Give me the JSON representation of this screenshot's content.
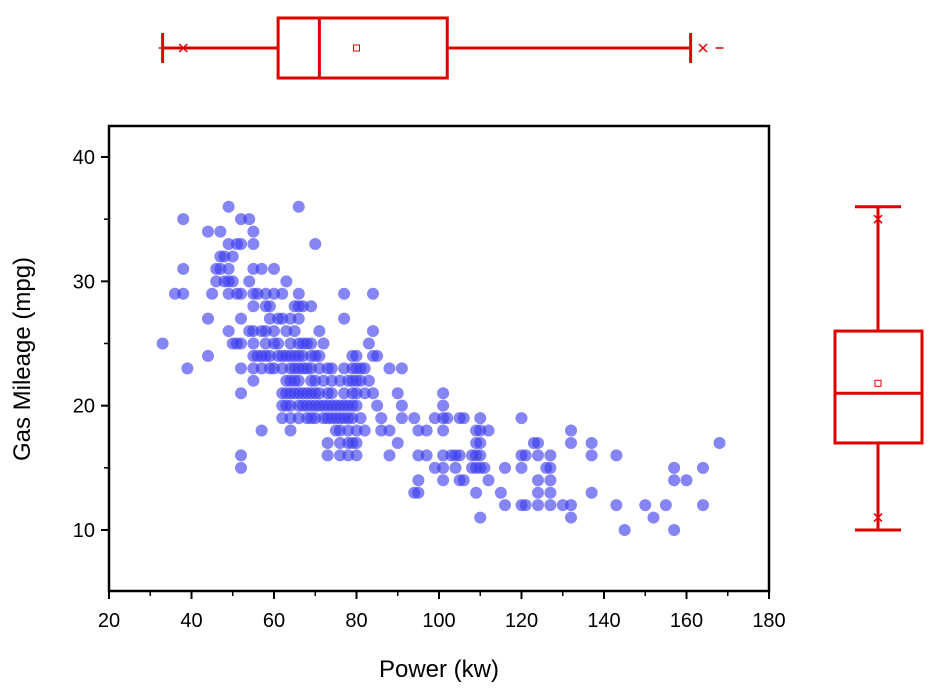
{
  "chart_data": {
    "type": "scatter",
    "xlabel": "Power (kw)",
    "ylabel": "Gas Mileage (mpg)",
    "xlim": [
      20,
      180
    ],
    "ylim": [
      5,
      43
    ],
    "x_ticks": [
      20,
      40,
      60,
      80,
      100,
      120,
      140,
      160,
      180
    ],
    "y_ticks": [
      10,
      20,
      30,
      40
    ],
    "grid": false,
    "legend": "none",
    "point_color": "#3a3aef",
    "box_color": "#e00000",
    "series": [
      {
        "points": [
          [
            33,
            25
          ],
          [
            36,
            29
          ],
          [
            38,
            35
          ],
          [
            38,
            31
          ],
          [
            38,
            29
          ],
          [
            39,
            23
          ],
          [
            44,
            34
          ],
          [
            44,
            27
          ],
          [
            44,
            24
          ],
          [
            45,
            29
          ],
          [
            46,
            31
          ],
          [
            46,
            30
          ],
          [
            47,
            34
          ],
          [
            47,
            32
          ],
          [
            47,
            31
          ],
          [
            48,
            32
          ],
          [
            48,
            30
          ],
          [
            49,
            36
          ],
          [
            49,
            33
          ],
          [
            49,
            31
          ],
          [
            49,
            30
          ],
          [
            49,
            29
          ],
          [
            49,
            26
          ],
          [
            50,
            32
          ],
          [
            50,
            30
          ],
          [
            50,
            25
          ],
          [
            51,
            33
          ],
          [
            51,
            29
          ],
          [
            51,
            25
          ],
          [
            52,
            35
          ],
          [
            52,
            33
          ],
          [
            52,
            29
          ],
          [
            52,
            27
          ],
          [
            52,
            25
          ],
          [
            52,
            23
          ],
          [
            52,
            21
          ],
          [
            52,
            16
          ],
          [
            52,
            15
          ],
          [
            54,
            35
          ],
          [
            54,
            30
          ],
          [
            54,
            26
          ],
          [
            55,
            34
          ],
          [
            55,
            33
          ],
          [
            55,
            31
          ],
          [
            55,
            29
          ],
          [
            55,
            28
          ],
          [
            55,
            26
          ],
          [
            55,
            25
          ],
          [
            55,
            24
          ],
          [
            55,
            23
          ],
          [
            55,
            22
          ],
          [
            56,
            29
          ],
          [
            56,
            24
          ],
          [
            57,
            31
          ],
          [
            57,
            26
          ],
          [
            57,
            24
          ],
          [
            57,
            23
          ],
          [
            57,
            18
          ],
          [
            58,
            29
          ],
          [
            58,
            28
          ],
          [
            58,
            26
          ],
          [
            58,
            25
          ],
          [
            58,
            24
          ],
          [
            59,
            28
          ],
          [
            59,
            27
          ],
          [
            59,
            24
          ],
          [
            59,
            23
          ],
          [
            60,
            31
          ],
          [
            60,
            29
          ],
          [
            60,
            26
          ],
          [
            60,
            25
          ],
          [
            60,
            23
          ],
          [
            61,
            27
          ],
          [
            61,
            25
          ],
          [
            61,
            24
          ],
          [
            62,
            29
          ],
          [
            62,
            27
          ],
          [
            62,
            24
          ],
          [
            62,
            23
          ],
          [
            62,
            21
          ],
          [
            62,
            20
          ],
          [
            62,
            19
          ],
          [
            63,
            30
          ],
          [
            63,
            26
          ],
          [
            63,
            24
          ],
          [
            63,
            22
          ],
          [
            63,
            21
          ],
          [
            63,
            20
          ],
          [
            64,
            27
          ],
          [
            64,
            25
          ],
          [
            64,
            24
          ],
          [
            64,
            23
          ],
          [
            64,
            22
          ],
          [
            64,
            21
          ],
          [
            64,
            20
          ],
          [
            64,
            19
          ],
          [
            64,
            18
          ],
          [
            65,
            28
          ],
          [
            65,
            26
          ],
          [
            65,
            24
          ],
          [
            65,
            23
          ],
          [
            65,
            22
          ],
          [
            65,
            21
          ],
          [
            66,
            36
          ],
          [
            66,
            29
          ],
          [
            66,
            28
          ],
          [
            66,
            27
          ],
          [
            66,
            25
          ],
          [
            66,
            24
          ],
          [
            66,
            23
          ],
          [
            66,
            22
          ],
          [
            66,
            21
          ],
          [
            66,
            20
          ],
          [
            66,
            19
          ],
          [
            67,
            28
          ],
          [
            67,
            25
          ],
          [
            67,
            24
          ],
          [
            67,
            23
          ],
          [
            67,
            21
          ],
          [
            67,
            20
          ],
          [
            68,
            25
          ],
          [
            68,
            23
          ],
          [
            68,
            21
          ],
          [
            68,
            20
          ],
          [
            68,
            19
          ],
          [
            69,
            28
          ],
          [
            69,
            25
          ],
          [
            69,
            24
          ],
          [
            69,
            23
          ],
          [
            69,
            22
          ],
          [
            69,
            21
          ],
          [
            69,
            20
          ],
          [
            69,
            19
          ],
          [
            70,
            33
          ],
          [
            70,
            24
          ],
          [
            70,
            22
          ],
          [
            70,
            21
          ],
          [
            70,
            20
          ],
          [
            70,
            19
          ],
          [
            71,
            26
          ],
          [
            71,
            24
          ],
          [
            71,
            23
          ],
          [
            71,
            21
          ],
          [
            71,
            20
          ],
          [
            72,
            25
          ],
          [
            72,
            22
          ],
          [
            72,
            20
          ],
          [
            72,
            19
          ],
          [
            73,
            23
          ],
          [
            73,
            21
          ],
          [
            73,
            20
          ],
          [
            73,
            19
          ],
          [
            73,
            17
          ],
          [
            73,
            16
          ],
          [
            74,
            23
          ],
          [
            74,
            22
          ],
          [
            74,
            21
          ],
          [
            74,
            20
          ],
          [
            74,
            19
          ],
          [
            75,
            20
          ],
          [
            75,
            19
          ],
          [
            75,
            18
          ],
          [
            76,
            22
          ],
          [
            76,
            20
          ],
          [
            76,
            19
          ],
          [
            76,
            18
          ],
          [
            76,
            17
          ],
          [
            76,
            16
          ],
          [
            77,
            29
          ],
          [
            77,
            27
          ],
          [
            77,
            23
          ],
          [
            77,
            21
          ],
          [
            77,
            20
          ],
          [
            77,
            19
          ],
          [
            78,
            22
          ],
          [
            78,
            20
          ],
          [
            78,
            19
          ],
          [
            78,
            18
          ],
          [
            78,
            17
          ],
          [
            78,
            16
          ],
          [
            79,
            24
          ],
          [
            79,
            23
          ],
          [
            79,
            22
          ],
          [
            79,
            21
          ],
          [
            79,
            20
          ],
          [
            79,
            19
          ],
          [
            79,
            17
          ],
          [
            80,
            24
          ],
          [
            80,
            23
          ],
          [
            80,
            22
          ],
          [
            80,
            21
          ],
          [
            80,
            20
          ],
          [
            80,
            18
          ],
          [
            80,
            17
          ],
          [
            80,
            16
          ],
          [
            81,
            23
          ],
          [
            81,
            22
          ],
          [
            81,
            19
          ],
          [
            82,
            18
          ],
          [
            82,
            23
          ],
          [
            82,
            21
          ],
          [
            83,
            25
          ],
          [
            83,
            22
          ],
          [
            84,
            29
          ],
          [
            84,
            26
          ],
          [
            84,
            24
          ],
          [
            84,
            21
          ],
          [
            85,
            24
          ],
          [
            85,
            20
          ],
          [
            86,
            19
          ],
          [
            86,
            18
          ],
          [
            88,
            23
          ],
          [
            88,
            18
          ],
          [
            88,
            16
          ],
          [
            90,
            21
          ],
          [
            90,
            17
          ],
          [
            91,
            23
          ],
          [
            91,
            20
          ],
          [
            91,
            19
          ],
          [
            94,
            19
          ],
          [
            94,
            13
          ],
          [
            95,
            18
          ],
          [
            95,
            16
          ],
          [
            95,
            14
          ],
          [
            95,
            13
          ],
          [
            97,
            18
          ],
          [
            97,
            16
          ],
          [
            99,
            19
          ],
          [
            99,
            15
          ],
          [
            101,
            21
          ],
          [
            101,
            20
          ],
          [
            101,
            19
          ],
          [
            101,
            18
          ],
          [
            101,
            16
          ],
          [
            101,
            15
          ],
          [
            101,
            14
          ],
          [
            102,
            19
          ],
          [
            103,
            16
          ],
          [
            104,
            16
          ],
          [
            104,
            15
          ],
          [
            105,
            19
          ],
          [
            105,
            16
          ],
          [
            105,
            14
          ],
          [
            106,
            19
          ],
          [
            106,
            14
          ],
          [
            108,
            16
          ],
          [
            108,
            15
          ],
          [
            109,
            18
          ],
          [
            109,
            17
          ],
          [
            109,
            16
          ],
          [
            109,
            15
          ],
          [
            109,
            13
          ],
          [
            110,
            19
          ],
          [
            110,
            18
          ],
          [
            110,
            17
          ],
          [
            110,
            16
          ],
          [
            110,
            15
          ],
          [
            110,
            11
          ],
          [
            111,
            15
          ],
          [
            112,
            18
          ],
          [
            112,
            14
          ],
          [
            115,
            13
          ],
          [
            116,
            15
          ],
          [
            116,
            12
          ],
          [
            120,
            19
          ],
          [
            120,
            16
          ],
          [
            120,
            15
          ],
          [
            120,
            12
          ],
          [
            121,
            16
          ],
          [
            121,
            12
          ],
          [
            123,
            17
          ],
          [
            124,
            17
          ],
          [
            124,
            16
          ],
          [
            124,
            14
          ],
          [
            124,
            13
          ],
          [
            124,
            12
          ],
          [
            126,
            15
          ],
          [
            127,
            16
          ],
          [
            127,
            15
          ],
          [
            127,
            14
          ],
          [
            127,
            13
          ],
          [
            127,
            12
          ],
          [
            130,
            12
          ],
          [
            132,
            18
          ],
          [
            132,
            17
          ],
          [
            132,
            12
          ],
          [
            132,
            11
          ],
          [
            137,
            17
          ],
          [
            137,
            16
          ],
          [
            137,
            13
          ],
          [
            143,
            16
          ],
          [
            143,
            12
          ],
          [
            145,
            10
          ],
          [
            150,
            12
          ],
          [
            152,
            11
          ],
          [
            155,
            12
          ],
          [
            157,
            15
          ],
          [
            157,
            14
          ],
          [
            157,
            10
          ],
          [
            160,
            14
          ],
          [
            164,
            15
          ],
          [
            164,
            12
          ],
          [
            168,
            17
          ]
        ]
      }
    ],
    "marginal_boxplots": {
      "x": {
        "whisker_low": 33,
        "q1": 61,
        "median": 71,
        "mean": 80,
        "q3": 102,
        "whisker_high": 161,
        "min_marker": 33,
        "p1_marker": 38,
        "p99_marker": 164,
        "max_marker": 168
      },
      "y": {
        "whisker_low": 10,
        "q1": 17,
        "median": 21,
        "mean": 21.8,
        "q3": 26,
        "whisker_high": 36,
        "p1_marker": 11,
        "p99_marker": 35
      }
    }
  }
}
